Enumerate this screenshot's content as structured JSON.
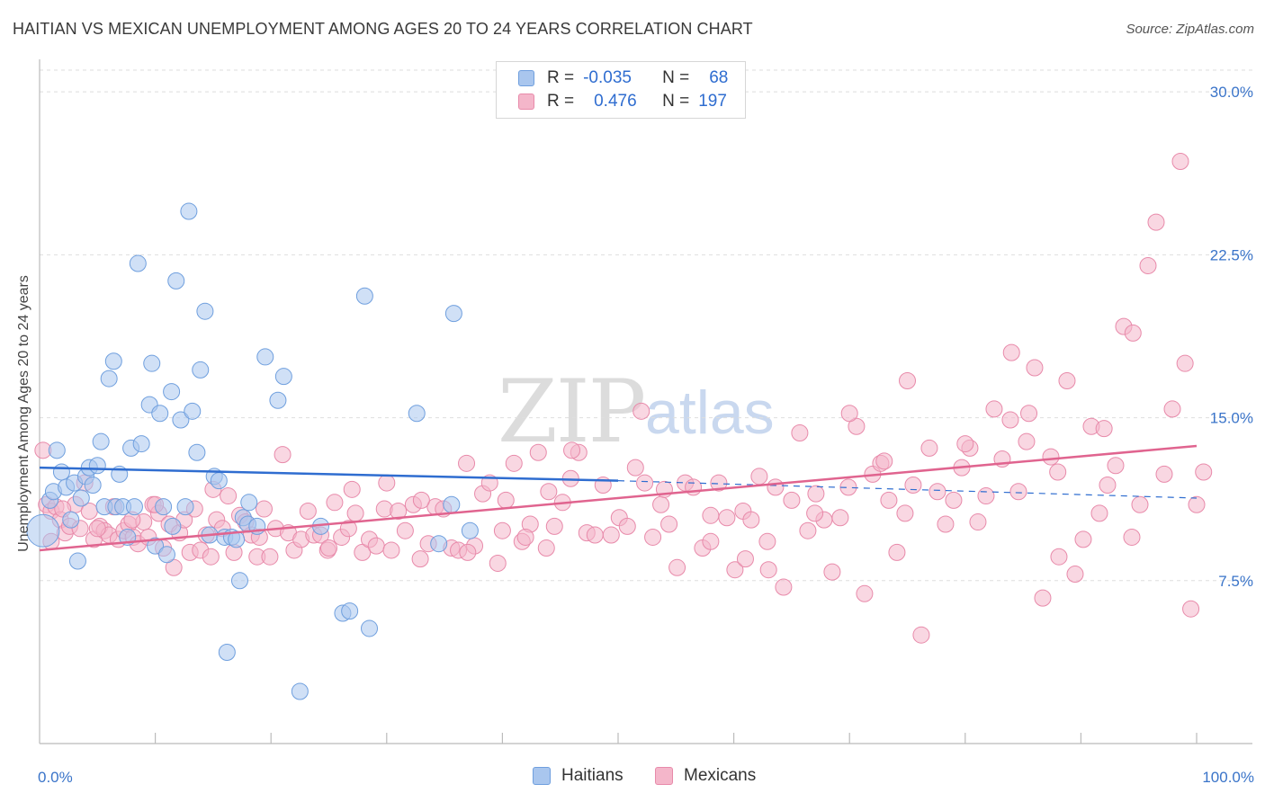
{
  "header": {
    "title": "HAITIAN VS MEXICAN UNEMPLOYMENT AMONG AGES 20 TO 24 YEARS CORRELATION CHART",
    "source": "Source: ZipAtlas.com"
  },
  "watermark": {
    "zip": "ZIP",
    "atlas": "atlas"
  },
  "legend_top": {
    "rows": [
      {
        "r_label": "R =",
        "r_value": "-0.035",
        "n_label": "N =",
        "n_value": "68"
      },
      {
        "r_label": "R =",
        "r_value": "0.476",
        "n_label": "N =",
        "n_value": "197"
      }
    ]
  },
  "legend_bottom": {
    "haitians": "Haitians",
    "mexicans": "Mexicans"
  },
  "colors": {
    "haitian_fill": "#a9c6ee",
    "haitian_stroke": "#6f9fde",
    "haitian_line": "#2f6dd0",
    "mexican_fill": "#f4b6ca",
    "mexican_stroke": "#e88aaa",
    "mexican_line": "#e0648f",
    "tick_label": "#3a74c9",
    "grid": "#dedede"
  },
  "chart_data": {
    "type": "scatter",
    "title": "HAITIAN VS MEXICAN UNEMPLOYMENT AMONG AGES 20 TO 24 YEARS CORRELATION CHART",
    "xlabel": "",
    "ylabel": "Unemployment Among Ages 20 to 24 years",
    "xlim": [
      0,
      100
    ],
    "ylim": [
      0,
      31
    ],
    "x_tick_labels": [
      "0.0%",
      "100.0%"
    ],
    "y_ticks": [
      7.5,
      15.0,
      22.5,
      30.0
    ],
    "y_tick_labels": [
      "7.5%",
      "15.0%",
      "22.5%",
      "30.0%"
    ],
    "grid": true,
    "legend_placement": "top-center",
    "series": [
      {
        "name": "Haitians",
        "r": -0.035,
        "n": 68,
        "trend": {
          "x": [
            0,
            50
          ],
          "y": [
            12.7,
            12.1
          ],
          "dashed_to": [
            100,
            11.3
          ]
        },
        "points": [
          [
            0.3,
            9.8
          ],
          [
            0.9,
            11.2
          ],
          [
            1.2,
            11.6
          ],
          [
            1.5,
            13.5
          ],
          [
            1.9,
            12.5
          ],
          [
            2.3,
            11.8
          ],
          [
            2.7,
            10.3
          ],
          [
            3.0,
            12.0
          ],
          [
            3.3,
            8.4
          ],
          [
            3.6,
            11.3
          ],
          [
            4.0,
            12.3
          ],
          [
            4.3,
            12.7
          ],
          [
            4.6,
            11.9
          ],
          [
            5.0,
            12.8
          ],
          [
            5.3,
            13.9
          ],
          [
            5.6,
            10.9
          ],
          [
            6.0,
            16.8
          ],
          [
            6.4,
            17.6
          ],
          [
            6.6,
            10.9
          ],
          [
            6.9,
            12.4
          ],
          [
            7.2,
            10.9
          ],
          [
            7.6,
            9.5
          ],
          [
            7.9,
            13.6
          ],
          [
            8.2,
            10.9
          ],
          [
            8.5,
            22.1
          ],
          [
            8.8,
            13.8
          ],
          [
            9.5,
            15.6
          ],
          [
            9.7,
            17.5
          ],
          [
            10.0,
            9.1
          ],
          [
            10.4,
            15.2
          ],
          [
            10.7,
            10.9
          ],
          [
            11.0,
            8.7
          ],
          [
            11.4,
            16.2
          ],
          [
            11.8,
            21.3
          ],
          [
            12.2,
            14.9
          ],
          [
            12.6,
            10.9
          ],
          [
            12.9,
            24.5
          ],
          [
            13.2,
            15.3
          ],
          [
            13.6,
            13.4
          ],
          [
            13.9,
            17.2
          ],
          [
            14.3,
            19.9
          ],
          [
            14.7,
            9.6
          ],
          [
            15.1,
            12.3
          ],
          [
            15.5,
            12.1
          ],
          [
            16.0,
            9.5
          ],
          [
            16.2,
            4.2
          ],
          [
            16.6,
            9.5
          ],
          [
            17.0,
            9.4
          ],
          [
            17.3,
            7.5
          ],
          [
            17.6,
            10.4
          ],
          [
            18.0,
            10.1
          ],
          [
            18.1,
            11.1
          ],
          [
            18.8,
            10.0
          ],
          [
            19.5,
            17.8
          ],
          [
            20.6,
            15.8
          ],
          [
            21.1,
            16.9
          ],
          [
            22.5,
            2.4
          ],
          [
            24.3,
            10.0
          ],
          [
            26.2,
            6.0
          ],
          [
            26.8,
            6.1
          ],
          [
            28.1,
            20.6
          ],
          [
            28.5,
            5.3
          ],
          [
            32.6,
            15.2
          ],
          [
            34.5,
            9.2
          ],
          [
            35.6,
            11.0
          ],
          [
            35.8,
            19.8
          ],
          [
            37.2,
            9.8
          ],
          [
            11.5,
            10.0
          ]
        ]
      },
      {
        "name": "Mexicans",
        "r": 0.476,
        "n": 197,
        "trend": {
          "x": [
            0,
            100
          ],
          "y": [
            8.9,
            13.7
          ]
        },
        "points": [
          [
            0.3,
            13.5
          ],
          [
            0.6,
            11.0
          ],
          [
            1.0,
            10.7
          ],
          [
            1.4,
            10.9
          ],
          [
            1.8,
            10.3
          ],
          [
            2.2,
            9.7
          ],
          [
            2.6,
            10.0
          ],
          [
            3.1,
            11.0
          ],
          [
            3.5,
            9.9
          ],
          [
            3.9,
            12.0
          ],
          [
            4.3,
            10.7
          ],
          [
            4.7,
            9.4
          ],
          [
            5.2,
            10.0
          ],
          [
            5.6,
            9.8
          ],
          [
            6.0,
            9.6
          ],
          [
            6.4,
            10.9
          ],
          [
            6.8,
            9.4
          ],
          [
            7.3,
            9.8
          ],
          [
            7.7,
            10.1
          ],
          [
            8.1,
            9.5
          ],
          [
            8.5,
            9.2
          ],
          [
            9.0,
            10.2
          ],
          [
            9.4,
            9.5
          ],
          [
            9.8,
            11.0
          ],
          [
            10.3,
            10.6
          ],
          [
            10.7,
            9.0
          ],
          [
            11.2,
            10.1
          ],
          [
            11.6,
            8.1
          ],
          [
            12.1,
            9.7
          ],
          [
            12.5,
            10.3
          ],
          [
            13.0,
            8.8
          ],
          [
            13.4,
            10.8
          ],
          [
            13.9,
            8.9
          ],
          [
            14.4,
            9.6
          ],
          [
            14.8,
            8.6
          ],
          [
            15.3,
            10.3
          ],
          [
            15.8,
            9.9
          ],
          [
            16.3,
            11.4
          ],
          [
            16.8,
            8.8
          ],
          [
            17.3,
            10.5
          ],
          [
            17.8,
            10.2
          ],
          [
            18.3,
            9.6
          ],
          [
            18.8,
            8.6
          ],
          [
            19.4,
            10.8
          ],
          [
            19.9,
            8.6
          ],
          [
            20.4,
            9.9
          ],
          [
            21.0,
            13.3
          ],
          [
            21.5,
            9.7
          ],
          [
            22.0,
            8.9
          ],
          [
            22.6,
            9.4
          ],
          [
            23.2,
            10.7
          ],
          [
            23.7,
            9.6
          ],
          [
            24.3,
            9.6
          ],
          [
            24.9,
            8.9
          ],
          [
            25.5,
            11.1
          ],
          [
            26.1,
            9.5
          ],
          [
            26.7,
            9.9
          ],
          [
            27.3,
            10.6
          ],
          [
            27.9,
            8.8
          ],
          [
            28.5,
            9.4
          ],
          [
            29.1,
            9.1
          ],
          [
            29.8,
            10.8
          ],
          [
            30.4,
            8.9
          ],
          [
            31.0,
            10.7
          ],
          [
            31.6,
            9.8
          ],
          [
            32.3,
            11.0
          ],
          [
            32.9,
            8.5
          ],
          [
            33.6,
            9.2
          ],
          [
            34.2,
            10.9
          ],
          [
            34.9,
            10.8
          ],
          [
            35.6,
            9.0
          ],
          [
            36.2,
            8.9
          ],
          [
            36.9,
            12.9
          ],
          [
            37.6,
            9.1
          ],
          [
            38.3,
            11.5
          ],
          [
            38.9,
            12.0
          ],
          [
            39.6,
            8.3
          ],
          [
            40.3,
            11.2
          ],
          [
            41.0,
            12.9
          ],
          [
            41.7,
            9.3
          ],
          [
            42.4,
            10.1
          ],
          [
            43.1,
            13.4
          ],
          [
            43.8,
            9.0
          ],
          [
            44.5,
            10.0
          ],
          [
            45.2,
            11.1
          ],
          [
            45.9,
            12.2
          ],
          [
            46.6,
            13.4
          ],
          [
            47.3,
            9.7
          ],
          [
            48.0,
            9.6
          ],
          [
            48.7,
            11.9
          ],
          [
            49.4,
            9.6
          ],
          [
            50.1,
            10.4
          ],
          [
            50.8,
            10.0
          ],
          [
            51.5,
            12.7
          ],
          [
            52.3,
            12.0
          ],
          [
            53.0,
            9.5
          ],
          [
            53.7,
            11.0
          ],
          [
            54.4,
            10.1
          ],
          [
            55.1,
            8.1
          ],
          [
            55.8,
            12.0
          ],
          [
            56.5,
            11.8
          ],
          [
            57.3,
            9.0
          ],
          [
            58.0,
            10.5
          ],
          [
            58.7,
            12.0
          ],
          [
            59.4,
            10.4
          ],
          [
            60.1,
            8.0
          ],
          [
            60.8,
            10.7
          ],
          [
            61.5,
            10.3
          ],
          [
            62.2,
            12.3
          ],
          [
            62.9,
            9.3
          ],
          [
            63.6,
            11.8
          ],
          [
            64.3,
            7.2
          ],
          [
            65.0,
            11.2
          ],
          [
            65.7,
            14.3
          ],
          [
            66.4,
            9.8
          ],
          [
            67.1,
            11.5
          ],
          [
            67.8,
            10.3
          ],
          [
            68.5,
            7.9
          ],
          [
            69.2,
            10.4
          ],
          [
            69.9,
            11.8
          ],
          [
            70.6,
            14.6
          ],
          [
            71.3,
            6.9
          ],
          [
            72.0,
            12.4
          ],
          [
            72.7,
            12.9
          ],
          [
            73.4,
            11.2
          ],
          [
            74.1,
            8.8
          ],
          [
            74.8,
            10.6
          ],
          [
            75.5,
            11.9
          ],
          [
            76.2,
            5.0
          ],
          [
            76.9,
            13.6
          ],
          [
            77.6,
            11.6
          ],
          [
            78.3,
            10.1
          ],
          [
            79.0,
            11.2
          ],
          [
            79.7,
            12.7
          ],
          [
            80.4,
            13.6
          ],
          [
            81.1,
            10.2
          ],
          [
            81.8,
            11.4
          ],
          [
            82.5,
            15.4
          ],
          [
            83.2,
            13.1
          ],
          [
            83.9,
            14.9
          ],
          [
            84.6,
            11.6
          ],
          [
            85.3,
            13.9
          ],
          [
            86.0,
            17.3
          ],
          [
            86.7,
            6.7
          ],
          [
            87.4,
            13.2
          ],
          [
            88.1,
            8.6
          ],
          [
            88.8,
            16.7
          ],
          [
            89.5,
            7.8
          ],
          [
            90.2,
            9.4
          ],
          [
            90.9,
            14.6
          ],
          [
            91.6,
            10.6
          ],
          [
            92.3,
            11.9
          ],
          [
            93.0,
            12.8
          ],
          [
            93.7,
            19.2
          ],
          [
            94.4,
            9.5
          ],
          [
            95.1,
            11.0
          ],
          [
            95.8,
            22.0
          ],
          [
            96.5,
            24.0
          ],
          [
            97.2,
            12.4
          ],
          [
            97.9,
            15.4
          ],
          [
            98.6,
            26.8
          ],
          [
            99.0,
            17.5
          ],
          [
            99.5,
            6.2
          ],
          [
            100.0,
            11.0
          ],
          [
            100.6,
            12.5
          ],
          [
            80.0,
            13.8
          ],
          [
            75.0,
            16.7
          ],
          [
            84.0,
            18.0
          ],
          [
            85.5,
            15.2
          ],
          [
            88.0,
            12.5
          ],
          [
            92.0,
            14.5
          ],
          [
            67.0,
            10.6
          ],
          [
            61.0,
            8.5
          ],
          [
            58.0,
            9.3
          ],
          [
            54.0,
            11.7
          ],
          [
            52.0,
            15.3
          ],
          [
            46.0,
            13.5
          ],
          [
            44.0,
            11.6
          ],
          [
            42.0,
            9.5
          ],
          [
            40.0,
            9.8
          ],
          [
            37.0,
            8.8
          ],
          [
            33.0,
            11.2
          ],
          [
            27.0,
            11.7
          ],
          [
            25.0,
            9.0
          ],
          [
            19.0,
            9.5
          ],
          [
            15.0,
            11.7
          ],
          [
            10.0,
            11.0
          ],
          [
            8.0,
            10.3
          ],
          [
            5.0,
            9.9
          ],
          [
            2.0,
            10.8
          ],
          [
            1.0,
            9.3
          ],
          [
            30.0,
            12.0
          ],
          [
            70.0,
            15.2
          ],
          [
            94.5,
            18.9
          ],
          [
            73.0,
            13.0
          ],
          [
            63.0,
            8.0
          ]
        ]
      }
    ]
  }
}
